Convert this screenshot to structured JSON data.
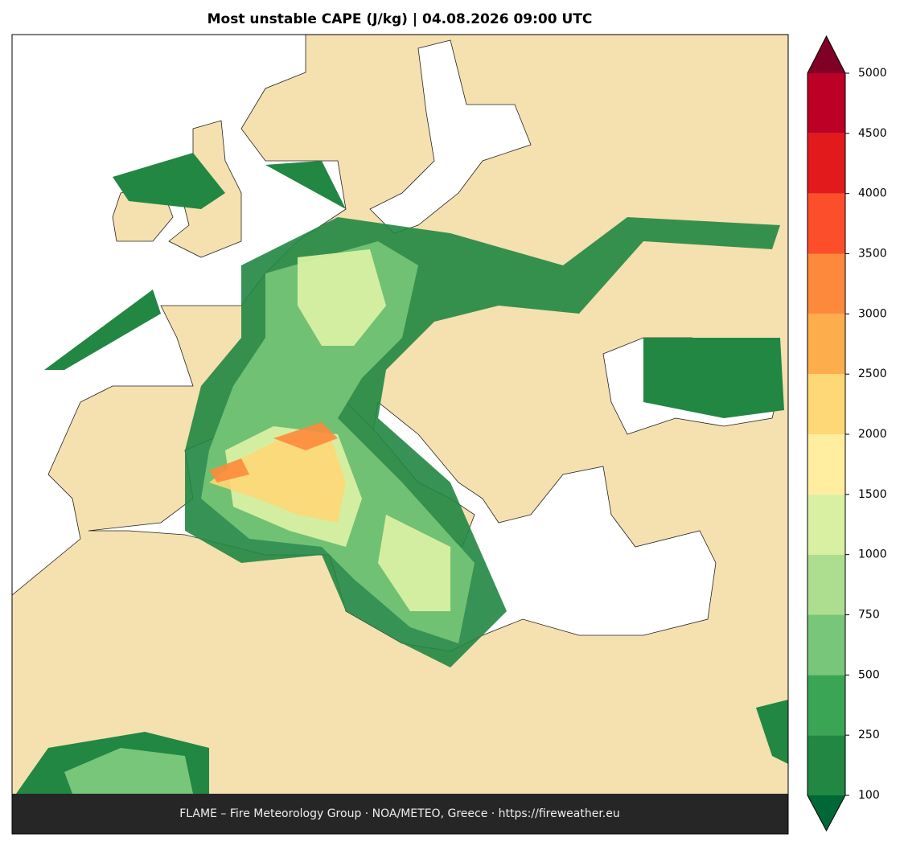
{
  "title": "Most unstable CAPE (J/kg)  |  04.08.2026 09:00 UTC",
  "colorbar": {
    "levels": [
      100,
      250,
      500,
      750,
      1000,
      1500,
      2000,
      2500,
      3000,
      3500,
      4000,
      4500,
      5000
    ],
    "colors": [
      "#218743",
      "#3ba556",
      "#78c679",
      "#addd8e",
      "#d9f0a3",
      "#ffeda0",
      "#fed776",
      "#fdad4c",
      "#fd8a3c",
      "#fc4e2a",
      "#e31a1c",
      "#bd0026"
    ],
    "under_color": "#006837",
    "over_color": "#800026"
  },
  "footer": "FLAME – Fire Meteorology Group · NOA/METEO, Greece · https://fireweather.eu"
}
